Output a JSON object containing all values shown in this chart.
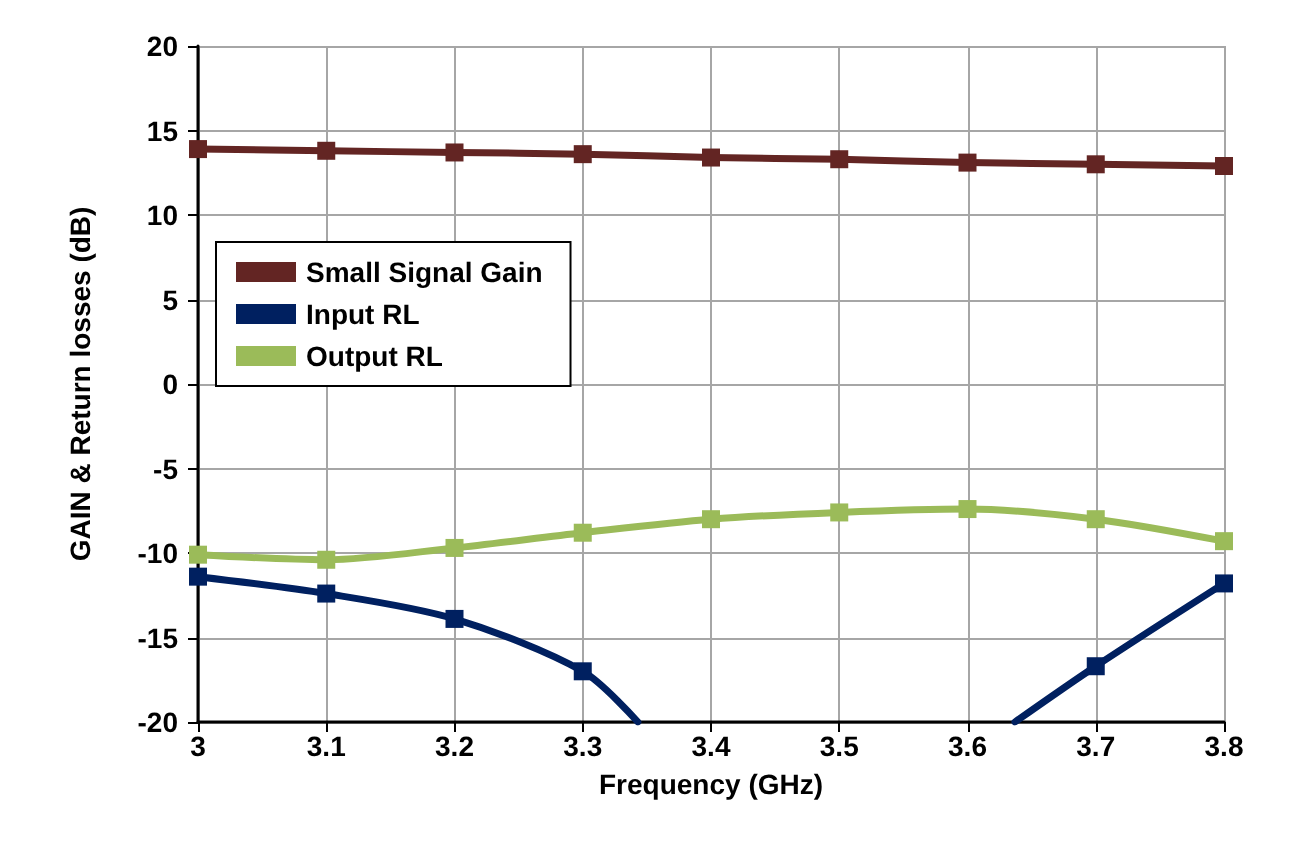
{
  "chart_data": {
    "type": "line",
    "xlabel": "Frequency (GHz)",
    "ylabel": "GAIN & Return losses (dB)",
    "x": [
      3,
      3.1,
      3.2,
      3.3,
      3.4,
      3.5,
      3.6,
      3.7,
      3.8
    ],
    "series": [
      {
        "name": "Small Signal Gain",
        "color": "#632523",
        "values": [
          13.9,
          13.8,
          13.7,
          13.6,
          13.4,
          13.3,
          13.1,
          13.0,
          12.9
        ]
      },
      {
        "name": "Input RL",
        "color": "#002060",
        "x": [
          3,
          3.1,
          3.2,
          3.3,
          3.343,
          3.5,
          3.637,
          3.7,
          3.8
        ],
        "values": [
          -11.4,
          -12.4,
          -13.9,
          -17.0,
          -20,
          null,
          -20,
          -16.7,
          -11.8
        ]
      },
      {
        "name": "Output RL",
        "color": "#9bbb59",
        "values": [
          -10.1,
          -10.4,
          -9.7,
          -8.8,
          -8.0,
          -7.6,
          -7.4,
          -8.0,
          -9.3
        ]
      }
    ],
    "xlim": [
      3,
      3.8
    ],
    "xticks": [
      3,
      3.1,
      3.2,
      3.3,
      3.4,
      3.5,
      3.6,
      3.7,
      3.8
    ],
    "ylim": [
      -20,
      20
    ],
    "yticks": [
      -20,
      -15,
      -10,
      -5,
      0,
      5,
      10,
      15,
      20
    ],
    "grid": true,
    "legend": "top left",
    "marker": "square",
    "line_style": "solid"
  }
}
